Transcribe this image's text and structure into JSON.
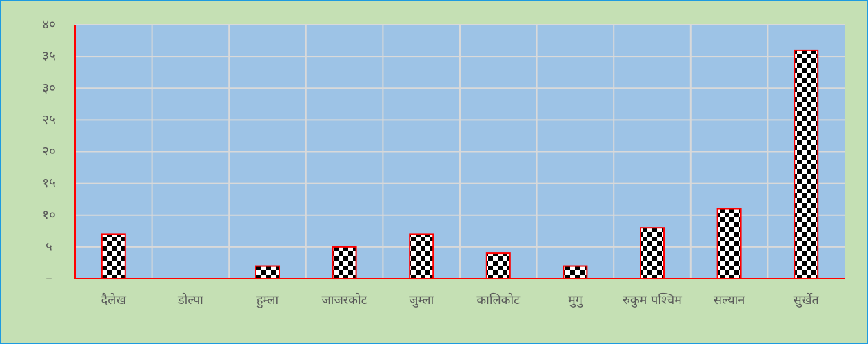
{
  "chart_data": {
    "type": "bar",
    "categories": [
      "दैलेख",
      "डोल्पा",
      "हुम्ला",
      "जाजरकोट",
      "जुम्ला",
      "कालिकोट",
      "मुगु",
      "रुकुम पश्चिम",
      "सल्यान",
      "सुर्खेत"
    ],
    "values": [
      7,
      0,
      2,
      5,
      7,
      4,
      2,
      8,
      11,
      36
    ],
    "color": "#000000",
    "ylim": [
      0,
      40
    ],
    "yticks": [
      {
        "value": 0,
        "label": "–"
      },
      {
        "value": 5,
        "label": "५"
      },
      {
        "value": 10,
        "label": "१०"
      },
      {
        "value": 15,
        "label": "१५"
      },
      {
        "value": 20,
        "label": "२०"
      },
      {
        "value": 25,
        "label": "२५"
      },
      {
        "value": 30,
        "label": "३०"
      },
      {
        "value": 35,
        "label": "३५"
      },
      {
        "value": 40,
        "label": "४०"
      }
    ],
    "grid": true
  }
}
